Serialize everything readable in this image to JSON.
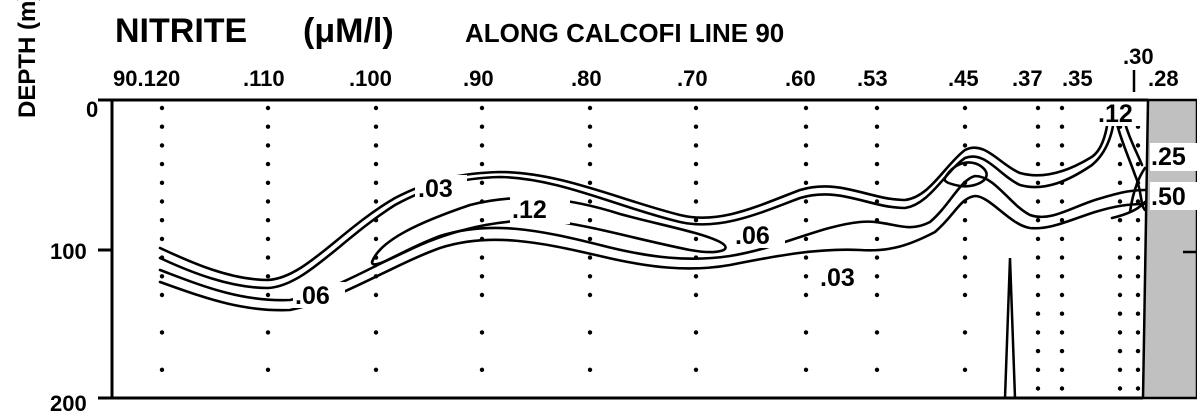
{
  "chart_data": {
    "type": "contour",
    "title": "NITRITE",
    "title_unit": "(μM/l)",
    "subtitle": "ALONG CALCOFI LINE 90",
    "ylabel": "DEPTH (m)",
    "ylim": [
      0,
      200
    ],
    "y_ticks": [
      0,
      100,
      200
    ],
    "station_labels": [
      "90.120",
      ".110",
      ".100",
      ".90",
      ".80",
      ".70",
      ".60",
      ".53",
      ".45",
      ".37",
      ".35",
      ".30",
      ".28"
    ],
    "contour_labels": [
      ".03",
      ".12",
      ".06",
      ".03",
      ".06",
      ".12",
      ".25",
      ".50"
    ],
    "land_color": "#c0c0c0"
  }
}
